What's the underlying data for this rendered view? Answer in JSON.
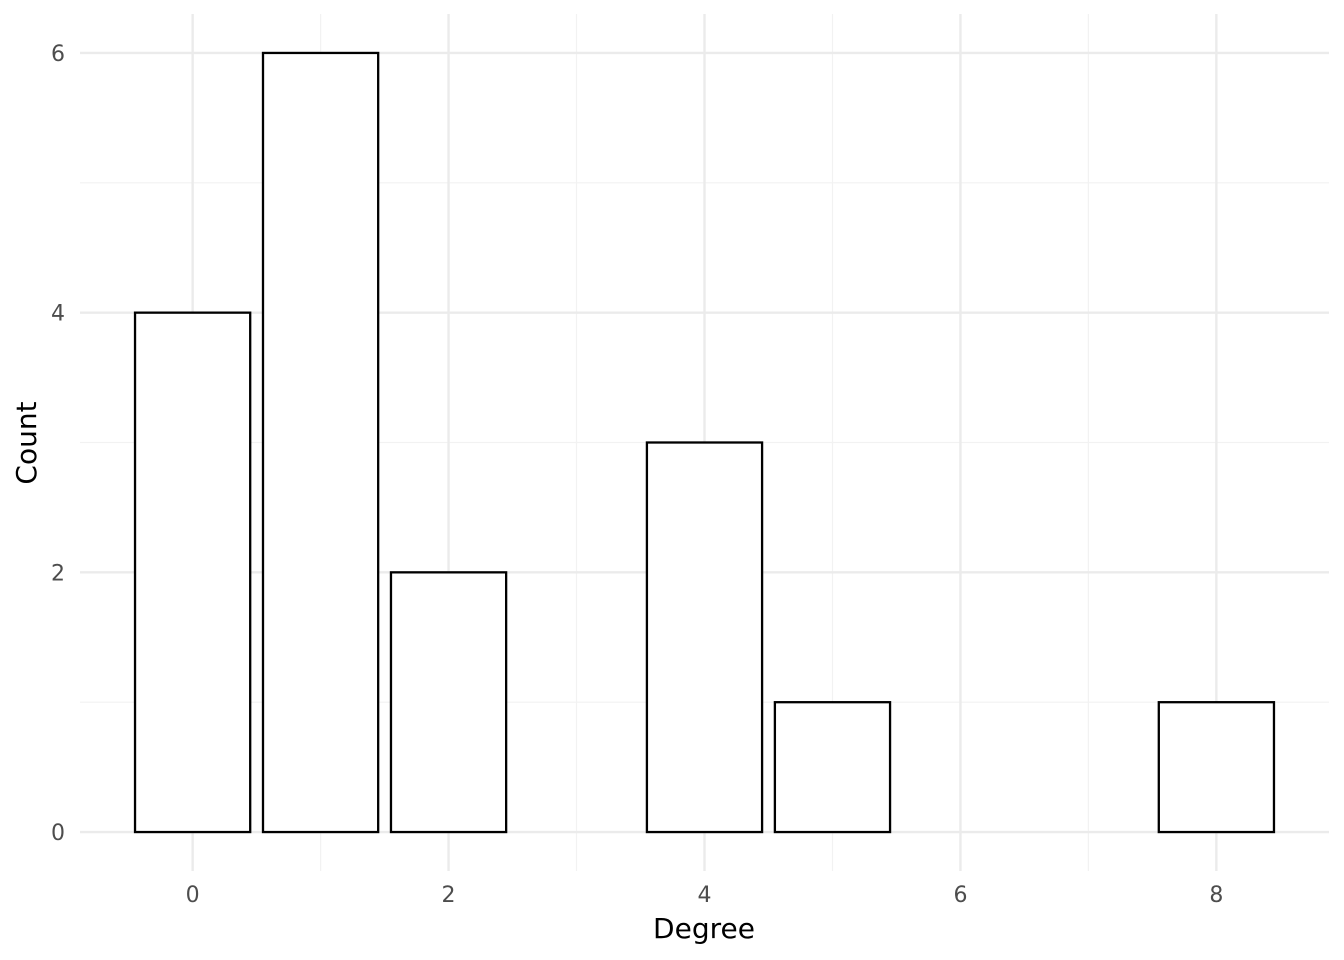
{
  "chart_data": {
    "type": "bar",
    "xlabel": "Degree",
    "ylabel": "Count",
    "x": [
      0,
      1,
      2,
      4,
      5,
      8
    ],
    "values": [
      4,
      6,
      2,
      3,
      1,
      1
    ],
    "bar_width": 0.9,
    "xlim": [
      -0.88,
      8.88
    ],
    "ylim": [
      -0.3,
      6.3
    ],
    "x_major_ticks": [
      0,
      2,
      4,
      6,
      8
    ],
    "x_minor_ticks": [
      1,
      3,
      5,
      7
    ],
    "y_major_ticks": [
      0,
      2,
      4,
      6
    ],
    "y_minor_ticks": [
      1,
      3,
      5
    ],
    "grid": true,
    "colors": {
      "bar_fill": "#ffffff",
      "bar_stroke": "#000000",
      "grid_major": "#ebebeb",
      "grid_minor": "#f2f2f2",
      "tick_text": "#4d4d4d"
    }
  }
}
